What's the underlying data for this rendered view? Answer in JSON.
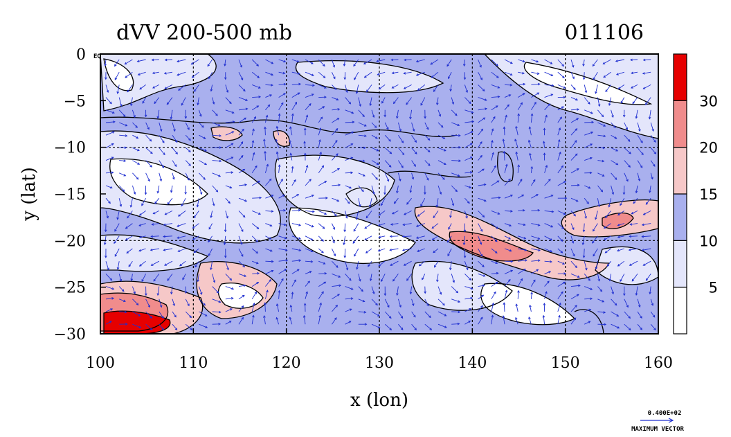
{
  "chart_data": {
    "type": "heatmap",
    "title": "dVV 200-500 mb",
    "date_label": "011106",
    "xlabel": "x (lon)",
    "ylabel": "y (lat)",
    "xlim": [
      100,
      160
    ],
    "ylim": [
      -30,
      0
    ],
    "x_ticks": [
      "100",
      "110",
      "120",
      "130",
      "140",
      "150",
      "160"
    ],
    "y_ticks": [
      "0",
      "−5",
      "−10",
      "−15",
      "−20",
      "−25",
      "−30"
    ],
    "eq_label": "EQ",
    "grid": true,
    "colorbar": {
      "levels": [
        5,
        10,
        15,
        20,
        30
      ],
      "labels": [
        "5",
        "10",
        "15",
        "20",
        "30"
      ],
      "colors": [
        "#ffffff",
        "#e4e6fb",
        "#a9b0ee",
        "#f6c8c8",
        "#f08c8c",
        "#e60000"
      ]
    },
    "vector_legend": {
      "value": "0.400E+02",
      "label": "MAXIMUM VECTOR"
    },
    "colors": {
      "vector": "#1f2fd0",
      "contour": "#000000",
      "grid": "#000000"
    }
  }
}
